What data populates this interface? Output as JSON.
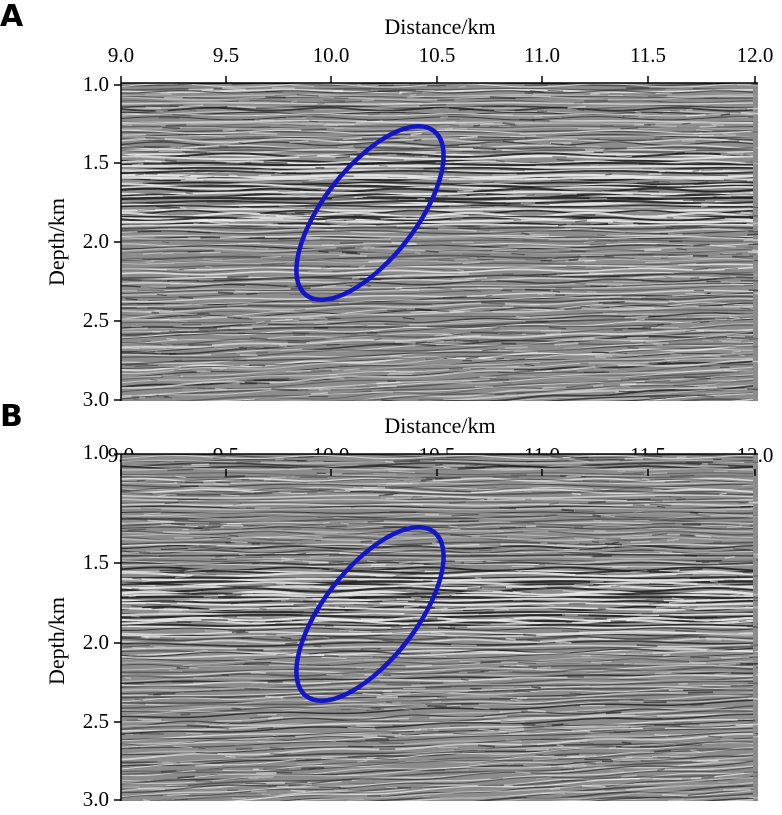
{
  "panels": [
    {
      "letter": "A",
      "xlabel": "Distance/km",
      "ylabel": "Depth/km",
      "xticks": [
        "9.0",
        "9.5",
        "10.0",
        "10.5",
        "11.0",
        "11.5",
        "12.0"
      ],
      "yticks": [
        "1.0",
        "1.5",
        "2.0",
        "2.5",
        "3.0"
      ]
    },
    {
      "letter": "B",
      "xlabel": "Distance/km",
      "ylabel": "Depth/km",
      "xticks": [
        "9.0",
        "9.5",
        "10.0",
        "10.5",
        "11.0",
        "11.5",
        "12.0"
      ],
      "yticks": [
        "1.0",
        "1.5",
        "2.0",
        "2.5",
        "3.0"
      ]
    }
  ],
  "colors": {
    "highlight_ellipse": "#1414c8",
    "seismic_background": "#8c8c8c",
    "seismic_dark": "#1a1a1a",
    "seismic_light": "#f0f0f0"
  }
}
